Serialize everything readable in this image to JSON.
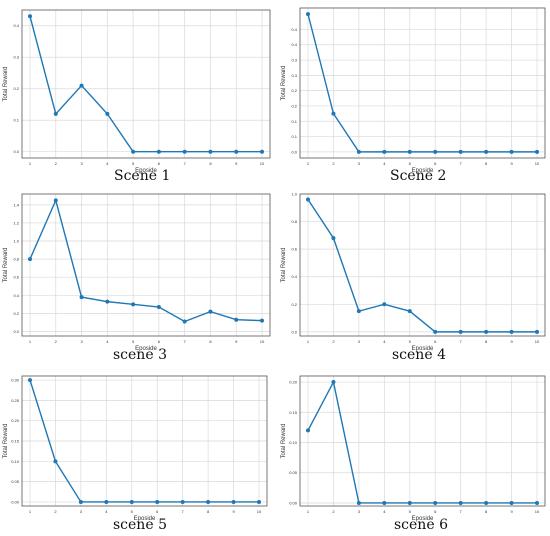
{
  "colors": {
    "line": "#1f77b4",
    "grid": "#d9d9d9",
    "frame": "#555555"
  },
  "chart_data": [
    {
      "type": "line",
      "caption": "Scene 1",
      "xlabel": "Eposide",
      "ylabel": "Total Reward",
      "x": [
        1,
        2,
        3,
        4,
        5,
        6,
        7,
        8,
        9,
        10
      ],
      "xticks": [
        "1",
        "2",
        "3",
        "4",
        "5",
        "6",
        "7",
        "8",
        "9",
        "10"
      ],
      "values": [
        0.43,
        0.12,
        0.21,
        0.12,
        0.0,
        0.0,
        0.0,
        0.0,
        0.0,
        0.0
      ],
      "ylim": [
        -0.02,
        0.45
      ],
      "yticks": [
        0.0,
        0.1,
        0.2,
        0.3,
        0.4
      ],
      "yticklabels": [
        "0.0",
        "0.1",
        "0.2",
        "0.3",
        "0.4"
      ],
      "grid": true
    },
    {
      "type": "line",
      "caption": "Scene 2",
      "xlabel": "Eposide",
      "ylabel": "Total Reward",
      "x": [
        1,
        2,
        3,
        4,
        5,
        6,
        7,
        8,
        9,
        10
      ],
      "xticks": [
        "1",
        "2",
        "3",
        "4",
        "5",
        "6",
        "7",
        "8",
        "9",
        "10"
      ],
      "values": [
        0.45,
        0.125,
        0.0,
        0.0,
        0.0,
        0.0,
        0.0,
        0.0,
        0.0,
        0.0
      ],
      "ylim": [
        -0.02,
        0.47
      ],
      "yticks": [
        0.0,
        0.05,
        0.1,
        0.15,
        0.2,
        0.25,
        0.3,
        0.35,
        0.4
      ],
      "yticklabels": [
        "0.0",
        "0.1",
        "0.1",
        "0.2",
        "0.2",
        "0.3",
        "0.3",
        "0.4",
        "0.4"
      ],
      "grid": true
    },
    {
      "type": "line",
      "caption": "scene 3",
      "xlabel": "Eposide",
      "ylabel": "Total Reward",
      "x": [
        1,
        2,
        3,
        4,
        5,
        6,
        7,
        8,
        9,
        10
      ],
      "xticks": [
        "1",
        "2",
        "3",
        "4",
        "5",
        "6",
        "7",
        "8",
        "9",
        "10"
      ],
      "values": [
        0.8,
        1.45,
        0.38,
        0.33,
        0.3,
        0.27,
        0.11,
        0.22,
        0.13,
        0.12
      ],
      "ylim": [
        -0.05,
        1.52
      ],
      "yticks": [
        0.0,
        0.2,
        0.4,
        0.6,
        0.8,
        1.0,
        1.2,
        1.4
      ],
      "yticklabels": [
        "0.0",
        "0.2",
        "0.4",
        "0.6",
        "0.8",
        "1.0",
        "1.2",
        "1.4"
      ],
      "grid": true
    },
    {
      "type": "line",
      "caption": "scene 4",
      "xlabel": "Eposide",
      "ylabel": "Total Reward",
      "x": [
        1,
        2,
        3,
        4,
        5,
        6,
        7,
        8,
        9,
        10
      ],
      "xticks": [
        "1",
        "2",
        "3",
        "4",
        "5",
        "6",
        "7",
        "8",
        "9",
        "10"
      ],
      "values": [
        0.96,
        0.68,
        0.15,
        0.2,
        0.15,
        0.0,
        0.0,
        0.0,
        0.0,
        0.0
      ],
      "ylim": [
        -0.03,
        1.0
      ],
      "yticks": [
        0.0,
        0.2,
        0.4,
        0.6,
        0.8,
        1.0
      ],
      "yticklabels": [
        "0.0",
        "0.2",
        "0.4",
        "0.6",
        "0.8",
        "1.0"
      ],
      "grid": true
    },
    {
      "type": "line",
      "caption": "scene 5",
      "xlabel": "Eposide",
      "ylabel": "Total Reward",
      "x": [
        1,
        2,
        3,
        4,
        5,
        6,
        7,
        8,
        9,
        10
      ],
      "xticks": [
        "1",
        "2",
        "3",
        "4",
        "5",
        "6",
        "7",
        "8",
        "9",
        "10"
      ],
      "values": [
        0.3,
        0.1,
        0.0,
        0.0,
        0.0,
        0.0,
        0.0,
        0.0,
        0.0,
        0.0
      ],
      "ylim": [
        -0.01,
        0.31
      ],
      "yticks": [
        0.0,
        0.05,
        0.1,
        0.15,
        0.2,
        0.25,
        0.3
      ],
      "yticklabels": [
        "0.00",
        "0.05",
        "0.10",
        "0.15",
        "0.20",
        "0.25",
        "0.30"
      ],
      "grid": true
    },
    {
      "type": "line",
      "caption": "scene 6",
      "xlabel": "Eposide",
      "ylabel": "Total Reward",
      "x": [
        1,
        2,
        3,
        4,
        5,
        6,
        7,
        8,
        9,
        10
      ],
      "xticks": [
        "1",
        "2",
        "3",
        "4",
        "5",
        "6",
        "7",
        "8",
        "9",
        "10"
      ],
      "values": [
        0.12,
        0.2,
        0.0,
        0.0,
        0.0,
        0.0,
        0.0,
        0.0,
        0.0,
        0.0
      ],
      "ylim": [
        -0.005,
        0.21
      ],
      "yticks": [
        0.0,
        0.05,
        0.1,
        0.15,
        0.2
      ],
      "yticklabels": [
        "0.00",
        "0.05",
        "0.10",
        "0.15",
        "0.20"
      ],
      "grid": true
    }
  ]
}
